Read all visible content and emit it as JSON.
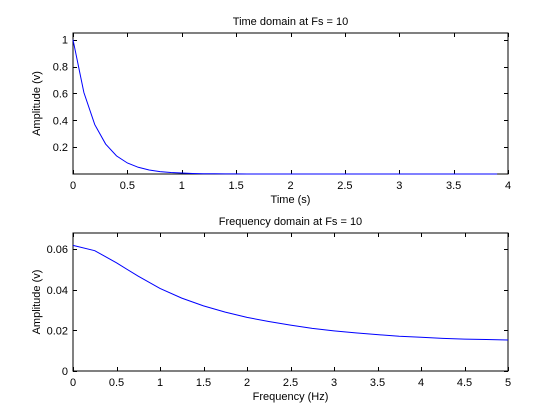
{
  "chart_data": [
    {
      "type": "line",
      "title": "Time domain at Fs = 10",
      "xlabel": "Time (s)",
      "ylabel": "Amplitude (v)",
      "xlim": [
        0,
        4
      ],
      "ylim": [
        0,
        1.05
      ],
      "xticks": [
        0,
        0.5,
        1,
        1.5,
        2,
        2.5,
        3,
        3.5,
        4
      ],
      "xtick_labels": [
        "0",
        "0.5",
        "1",
        "1.5",
        "2",
        "2.5",
        "3",
        "3.5",
        "4"
      ],
      "yticks": [
        0.2,
        0.4,
        0.6,
        0.8,
        1
      ],
      "ytick_labels": [
        "0.2",
        "0.4",
        "0.6",
        "0.8",
        "1"
      ],
      "grid": false,
      "color": "#0000ff",
      "series": [
        {
          "x": [
            0,
            0.1,
            0.2,
            0.3,
            0.4,
            0.5,
            0.6,
            0.7,
            0.8,
            0.9,
            1.0,
            1.1,
            1.2,
            1.3,
            1.4,
            1.5,
            1.6,
            1.7,
            1.8,
            1.9,
            2.0,
            2.1,
            2.2,
            2.3,
            2.4,
            2.5,
            2.6,
            2.7,
            2.8,
            2.9,
            3.0,
            3.1,
            3.2,
            3.3,
            3.4,
            3.5,
            3.6,
            3.7,
            3.8,
            3.9
          ],
          "y": [
            1.0,
            0.607,
            0.368,
            0.223,
            0.135,
            0.082,
            0.05,
            0.03,
            0.018,
            0.011,
            0.007,
            0.004,
            0.002,
            0.0015,
            0.0009,
            0.0006,
            0.0003,
            0.0002,
            0.0001,
            0.0001,
            0,
            0,
            0,
            0,
            0,
            0,
            0,
            0,
            0,
            0,
            0,
            0,
            0,
            0,
            0,
            0,
            0,
            0,
            0,
            0
          ]
        }
      ]
    },
    {
      "type": "line",
      "title": "Frequency domain at Fs = 10",
      "xlabel": "Frequency (Hz)",
      "ylabel": "Amplitude (v)",
      "xlim": [
        0,
        5
      ],
      "ylim": [
        0,
        0.068
      ],
      "xticks": [
        0,
        0.5,
        1,
        1.5,
        2,
        2.5,
        3,
        3.5,
        4,
        4.5,
        5
      ],
      "xtick_labels": [
        "0",
        "0.5",
        "1",
        "1.5",
        "2",
        "2.5",
        "3",
        "3.5",
        "4",
        "4.5",
        "5"
      ],
      "yticks": [
        0,
        0.02,
        0.04,
        0.06
      ],
      "ytick_labels": [
        "0",
        "0.02",
        "0.04",
        "0.06"
      ],
      "grid": false,
      "color": "#0000ff",
      "series": [
        {
          "x": [
            0,
            0.25,
            0.5,
            0.75,
            1.0,
            1.25,
            1.5,
            1.75,
            2.0,
            2.25,
            2.5,
            2.75,
            3.0,
            3.25,
            3.5,
            3.75,
            4.0,
            4.25,
            4.5,
            4.75,
            5.0
          ],
          "y": [
            0.0619,
            0.0593,
            0.0533,
            0.0467,
            0.0407,
            0.0359,
            0.0321,
            0.029,
            0.0264,
            0.0244,
            0.0226,
            0.021,
            0.0198,
            0.0188,
            0.0179,
            0.0171,
            0.0166,
            0.0161,
            0.0157,
            0.0155,
            0.0153
          ]
        }
      ]
    }
  ]
}
